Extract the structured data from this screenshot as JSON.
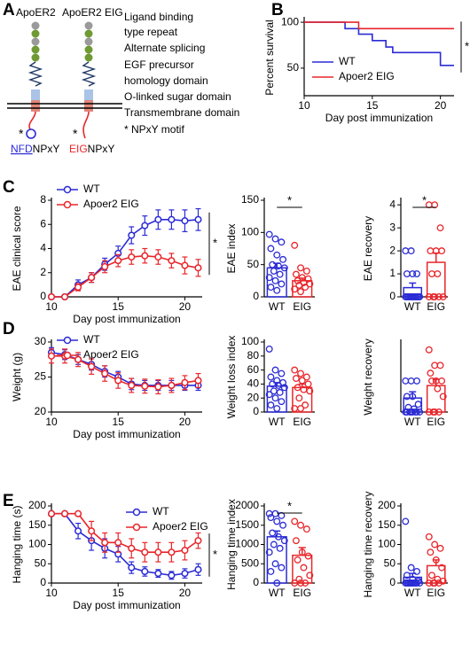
{
  "diagram": {
    "panel": "A",
    "labels": [
      "ApoER2",
      "ApoER2 EIG"
    ],
    "star": "*",
    "motif_left": [
      "NFD",
      "NPxY"
    ],
    "motif_right": [
      "EIG",
      "NPxY"
    ],
    "legend": [
      {
        "text": "Ligand binding",
        "color": "#6f9a34"
      },
      {
        "text": "type repeat",
        "color": "#6f9a34"
      },
      {
        "text": "Alternate splicing",
        "color": "#8a8a8a"
      },
      {
        "text": "EGF precursor",
        "color": "#1f3864"
      },
      {
        "text": "homology domain",
        "color": "#1f3864"
      },
      {
        "text": "O-linked sugar domain",
        "color": "#4a8ad4"
      },
      {
        "text": "Transmembrane domain",
        "color": "#e0867a"
      },
      {
        "text": "*  NPxY motif",
        "color": "#000000"
      }
    ]
  },
  "chart_data": [
    {
      "type": "step",
      "panel": "B",
      "ylabel": "Percent survival",
      "xlabel": "Day post immunization",
      "xlim": [
        10,
        21
      ],
      "xticks": [
        10,
        15,
        20
      ],
      "ylim": [
        20,
        103
      ],
      "yticks": [
        50,
        100
      ],
      "annotation": "*",
      "series": [
        {
          "name": "WT",
          "color": "#2b2bd6",
          "x": [
            10,
            13,
            13,
            14,
            14,
            15,
            15,
            16,
            16,
            16.5,
            16.5,
            20,
            20,
            21
          ],
          "values": [
            100,
            100,
            93,
            93,
            87,
            87,
            80,
            80,
            73,
            73,
            67,
            67,
            53,
            53
          ]
        },
        {
          "name": "Apoer2 EIG",
          "color": "#e8262b",
          "x": [
            10,
            14,
            14,
            21
          ],
          "values": [
            100,
            100,
            93,
            93
          ]
        }
      ]
    },
    {
      "type": "line",
      "panel": "C",
      "ylabel": "EAE clinical score",
      "xlabel": "Day post immunization",
      "x": [
        10,
        11,
        12,
        13,
        14,
        15,
        16,
        17,
        18,
        19,
        20,
        21
      ],
      "xlim": [
        10,
        21.3
      ],
      "xticks": [
        10,
        15,
        20
      ],
      "ylim": [
        0,
        8
      ],
      "yticks": [
        0,
        2,
        4,
        6,
        8
      ],
      "annotation": "*",
      "series": [
        {
          "name": "WT",
          "color": "#2b2bd6",
          "values": [
            0,
            0,
            1,
            1.6,
            2.7,
            3.6,
            5.1,
            5.9,
            6.4,
            6.4,
            6.3,
            6.4
          ],
          "errors": [
            0,
            0,
            0.4,
            0.4,
            0.5,
            0.6,
            0.7,
            0.8,
            0.8,
            0.8,
            0.9,
            0.9
          ]
        },
        {
          "name": "Apoer2 EIG",
          "color": "#e8262b",
          "values": [
            0,
            0,
            0.8,
            1.6,
            2.5,
            3.0,
            3.3,
            3.4,
            3.3,
            3.0,
            2.6,
            2.4
          ],
          "errors": [
            0,
            0,
            0.3,
            0.4,
            0.5,
            0.5,
            0.6,
            0.6,
            0.6,
            0.6,
            0.7,
            0.7
          ]
        }
      ]
    },
    {
      "type": "bar",
      "ylabel": "EAE index",
      "categories": [
        "WT",
        "EIG"
      ],
      "colors": [
        "#2b2bd6",
        "#e8262b"
      ],
      "ylim": [
        0,
        150
      ],
      "yticks": [
        0,
        50,
        100,
        150
      ],
      "values": [
        45,
        25
      ],
      "errors": [
        7,
        4
      ],
      "annotation": "*",
      "points": [
        [
          97,
          90,
          85,
          75,
          65,
          58,
          50,
          48,
          45,
          40,
          35,
          30,
          25,
          20,
          15,
          10
        ],
        [
          80,
          45,
          40,
          35,
          30,
          28,
          25,
          22,
          20,
          18,
          15,
          12,
          8
        ]
      ]
    },
    {
      "type": "bar",
      "ylabel": "EAE recovery",
      "categories": [
        "WT",
        "EIG"
      ],
      "colors": [
        "#2b2bd6",
        "#e8262b"
      ],
      "ylim": [
        0,
        4.2
      ],
      "yticks": [
        0,
        1,
        2,
        3,
        4
      ],
      "values": [
        0.4,
        1.5
      ],
      "errors": [
        0.2,
        0.4
      ],
      "annotation": "*",
      "points": [
        [
          2,
          2,
          1,
          1,
          1,
          0,
          0,
          0,
          0,
          0,
          0,
          0,
          0,
          0,
          0,
          0
        ],
        [
          4,
          4,
          3,
          2,
          2,
          2,
          1,
          1,
          0,
          0,
          0,
          0,
          0
        ]
      ]
    },
    {
      "type": "line",
      "panel": "D",
      "ylabel": "Weight (g)",
      "xlabel": "Day post immunization",
      "x": [
        10,
        11,
        12,
        13,
        14,
        15,
        16,
        17,
        18,
        19,
        20,
        21
      ],
      "xlim": [
        10,
        21.3
      ],
      "xticks": [
        10,
        15,
        20
      ],
      "ylim": [
        20,
        30
      ],
      "yticks": [
        20,
        25,
        30
      ],
      "series": [
        {
          "name": "WT",
          "color": "#2b2bd6",
          "values": [
            28.5,
            28.2,
            27.5,
            26.8,
            25.8,
            25,
            24,
            23.8,
            23.8,
            23.8,
            23.8,
            23.8
          ],
          "errors": [
            0.7,
            0.7,
            0.7,
            0.8,
            0.8,
            0.8,
            0.8,
            0.7,
            0.7,
            0.7,
            0.7,
            0.7
          ]
        },
        {
          "name": "Apoer2 EIG",
          "color": "#e8262b",
          "values": [
            28,
            28,
            27.5,
            26.5,
            25.5,
            24.5,
            23.8,
            23.7,
            23.6,
            23.8,
            24.2,
            24.5
          ],
          "errors": [
            1,
            1,
            1,
            1.1,
            1.1,
            1.1,
            1,
            1,
            1,
            1,
            1,
            1
          ]
        }
      ]
    },
    {
      "type": "bar",
      "ylabel": "Weight loss index",
      "categories": [
        "WT",
        "EIG"
      ],
      "colors": [
        "#2b2bd6",
        "#e8262b"
      ],
      "ylim": [
        0,
        100
      ],
      "yticks": [
        0,
        20,
        40,
        60,
        80,
        100
      ],
      "values": [
        37,
        35
      ],
      "errors": [
        5,
        5
      ],
      "points": [
        [
          90,
          60,
          55,
          50,
          45,
          42,
          40,
          38,
          35,
          30,
          28,
          25,
          20,
          15,
          10,
          5
        ],
        [
          60,
          55,
          50,
          48,
          45,
          40,
          35,
          32,
          30,
          20,
          10,
          5,
          5
        ]
      ]
    },
    {
      "type": "bar",
      "ylabel": "Weight recovery",
      "categories": [
        "WT",
        "EIG"
      ],
      "colors": [
        "#2b2bd6",
        "#e8262b"
      ],
      "ylim": [
        0,
        4.5
      ],
      "values": [
        0.9,
        1.7
      ],
      "errors": [
        0.4,
        0.4
      ],
      "points": [
        [
          2,
          2,
          2,
          1,
          1,
          0.5,
          0.3,
          0.2,
          0,
          0,
          0,
          0,
          0,
          0,
          0,
          0
        ],
        [
          4,
          3,
          3,
          2.5,
          2,
          2,
          2,
          1.5,
          1,
          0,
          0,
          0,
          0
        ]
      ]
    },
    {
      "type": "line",
      "panel": "E",
      "ylabel": "Hanging time (s)",
      "xlabel": "Day post immunization",
      "x": [
        10,
        11,
        12,
        13,
        14,
        15,
        16,
        17,
        18,
        19,
        20,
        21
      ],
      "xlim": [
        10,
        21.3
      ],
      "xticks": [
        10,
        15,
        20
      ],
      "ylim": [
        0,
        200
      ],
      "yticks": [
        0,
        50,
        100,
        150,
        200
      ],
      "annotation": "*",
      "series": [
        {
          "name": "WT",
          "color": "#2b2bd6",
          "values": [
            180,
            180,
            135,
            110,
            90,
            75,
            40,
            30,
            25,
            20,
            25,
            35
          ],
          "errors": [
            0,
            0,
            20,
            25,
            25,
            20,
            15,
            12,
            10,
            10,
            12,
            15
          ]
        },
        {
          "name": "Apoer2 EIG",
          "color": "#e8262b",
          "values": [
            180,
            180,
            180,
            135,
            105,
            105,
            90,
            80,
            80,
            80,
            85,
            110
          ],
          "errors": [
            0,
            0,
            0,
            25,
            25,
            25,
            25,
            25,
            25,
            25,
            25,
            20
          ]
        }
      ]
    },
    {
      "type": "bar",
      "ylabel": "Hanging time index",
      "categories": [
        "WT",
        "EIG"
      ],
      "colors": [
        "#2b2bd6",
        "#e8262b"
      ],
      "ylim": [
        0,
        2000
      ],
      "yticks": [
        0,
        500,
        1000,
        1500,
        2000
      ],
      "values": [
        1200,
        720
      ],
      "errors": [
        150,
        200
      ],
      "annotation": "*",
      "points": [
        [
          1800,
          1800,
          1750,
          1700,
          1600,
          1500,
          1300,
          1200,
          1100,
          1000,
          900,
          800,
          500,
          400,
          300,
          0
        ],
        [
          1600,
          1500,
          1400,
          1100,
          800,
          700,
          600,
          400,
          200,
          100,
          0,
          0,
          0
        ]
      ]
    },
    {
      "type": "bar",
      "ylabel": "Hanging time recovery",
      "categories": [
        "WT",
        "EIG"
      ],
      "colors": [
        "#2b2bd6",
        "#e8262b"
      ],
      "ylim": [
        0,
        200
      ],
      "yticks": [
        0,
        50,
        100,
        150,
        200
      ],
      "values": [
        15,
        45
      ],
      "errors": [
        10,
        15
      ],
      "points": [
        [
          160,
          40,
          30,
          20,
          10,
          5,
          0,
          0,
          0,
          0,
          0,
          0,
          0,
          0,
          0,
          0
        ],
        [
          120,
          100,
          90,
          80,
          60,
          40,
          20,
          10,
          5,
          0,
          0,
          0,
          0
        ]
      ]
    }
  ]
}
